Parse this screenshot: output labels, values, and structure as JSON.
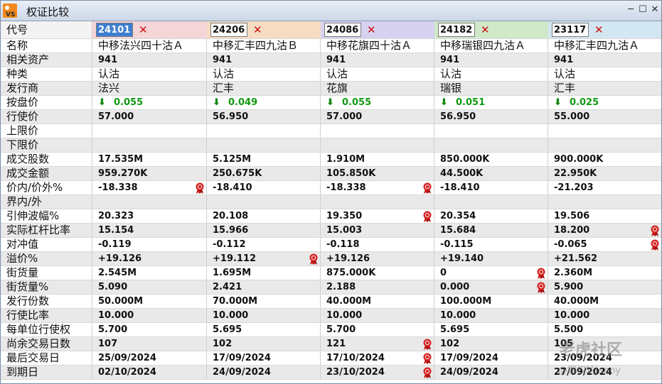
{
  "window": {
    "title": "权证比较",
    "app_icon_text": "VS"
  },
  "columns": [
    {
      "code": "24101",
      "color": "#f5d5d8",
      "selected": true
    },
    {
      "code": "24206",
      "color": "#f6dcc2",
      "selected": false
    },
    {
      "code": "24086",
      "color": "#d6d2f0",
      "selected": false
    },
    {
      "code": "24182",
      "color": "#cfe9c9",
      "selected": false
    },
    {
      "code": "23117",
      "color": "#d3e7f2",
      "selected": false
    }
  ],
  "code_row_label": "代号",
  "rows": [
    {
      "label": "名称",
      "cn": true,
      "values": [
        "中移法兴四十沽Ａ",
        "中移汇丰四九沽Ｂ",
        "中移花旗四十沽Ａ",
        "中移瑞银四九沽Ａ",
        "中移汇丰四九沽Ａ"
      ]
    },
    {
      "label": "相关资产",
      "values": [
        "941",
        "941",
        "941",
        "941",
        "941"
      ]
    },
    {
      "label": "种类",
      "cn": true,
      "values": [
        "认沽",
        "认沽",
        "认沽",
        "认沽",
        "认沽"
      ]
    },
    {
      "label": "发行商",
      "cn": true,
      "values": [
        "法兴",
        "汇丰",
        "花旗",
        "瑞银",
        "汇丰"
      ]
    },
    {
      "label": "按盘价",
      "green": true,
      "arrow": true,
      "values": [
        "0.055",
        "0.049",
        "0.055",
        "0.051",
        "0.025"
      ]
    },
    {
      "label": "行使价",
      "values": [
        "57.000",
        "56.950",
        "57.000",
        "56.950",
        "55.000"
      ]
    },
    {
      "label": "上限价",
      "values": [
        "",
        "",
        "",
        "",
        ""
      ]
    },
    {
      "label": "下限价",
      "values": [
        "",
        "",
        "",
        "",
        ""
      ]
    },
    {
      "label": "成交股数",
      "values": [
        "17.535M",
        "5.125M",
        "1.910M",
        "850.000K",
        "900.000K"
      ]
    },
    {
      "label": "成交金额",
      "values": [
        "959.270K",
        "250.675K",
        "105.850K",
        "44.500K",
        "22.950K"
      ]
    },
    {
      "label": "价内/价外%",
      "values": [
        "-18.338",
        "-18.410",
        "-18.338",
        "-18.410",
        "-21.203"
      ],
      "best": [
        0,
        2
      ]
    },
    {
      "label": "界内/外",
      "values": [
        "",
        "",
        "",
        "",
        ""
      ]
    },
    {
      "label": "引伸波幅%",
      "values": [
        "20.323",
        "20.108",
        "19.350",
        "20.354",
        "19.506"
      ],
      "best": [
        2
      ]
    },
    {
      "label": "实际杠杆比率",
      "values": [
        "15.154",
        "15.966",
        "15.003",
        "15.684",
        "18.200"
      ],
      "best": [
        4
      ]
    },
    {
      "label": "对冲值",
      "values": [
        "-0.119",
        "-0.112",
        "-0.118",
        "-0.115",
        "-0.065"
      ],
      "best": [
        4
      ]
    },
    {
      "label": "溢价%",
      "values": [
        "+19.126",
        "+19.112",
        "+19.126",
        "+19.140",
        "+21.562"
      ],
      "best": [
        1
      ]
    },
    {
      "label": "街货量",
      "values": [
        "2.545M",
        "1.695M",
        "875.000K",
        "0",
        "2.360M"
      ],
      "best": [
        3
      ]
    },
    {
      "label": "街货量%",
      "values": [
        "5.090",
        "2.421",
        "2.188",
        "0.000",
        "5.900"
      ],
      "best": [
        3
      ]
    },
    {
      "label": "发行份数",
      "values": [
        "50.000M",
        "70.000M",
        "40.000M",
        "100.000M",
        "40.000M"
      ]
    },
    {
      "label": "行使比率",
      "values": [
        "10.000",
        "10.000",
        "10.000",
        "10.000",
        "10.000"
      ]
    },
    {
      "label": "每单位行使权",
      "values": [
        "5.700",
        "5.695",
        "5.700",
        "5.695",
        "5.500"
      ]
    },
    {
      "label": "尚余交易日数",
      "values": [
        "107",
        "102",
        "121",
        "102",
        "105"
      ],
      "best": [
        2
      ]
    },
    {
      "label": "最后交易日",
      "values": [
        "25/09/2024",
        "17/09/2024",
        "17/10/2024",
        "17/09/2024",
        "23/09/2024"
      ],
      "best": [
        2
      ]
    },
    {
      "label": "到期日",
      "values": [
        "02/10/2024",
        "24/09/2024",
        "23/10/2024",
        "24/09/2024",
        "27/09/2024"
      ],
      "best": [
        2
      ]
    }
  ],
  "watermark": {
    "line1": "老虎社区",
    "line2": "@期权轮Jenny"
  }
}
